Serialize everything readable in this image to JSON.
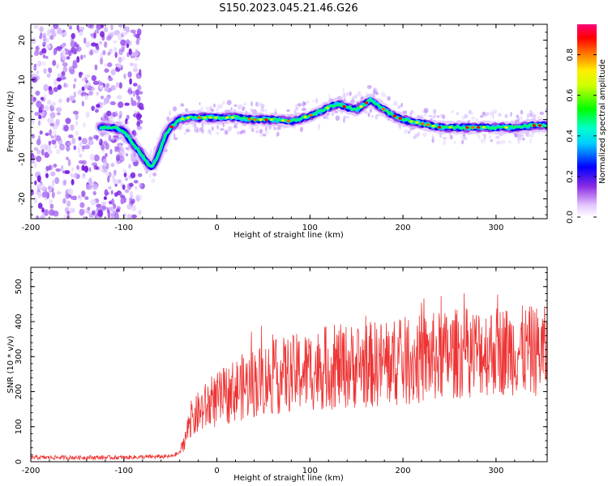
{
  "title": "S150.2023.045.21.46.G26",
  "colors": {
    "snr_line": "#ee3333",
    "spectrogram_colormap": [
      "#ffffff",
      "#8a2be2",
      "#0000ff",
      "#00ffff",
      "#00ff00",
      "#ffff00",
      "#ff0000",
      "#ff0066"
    ]
  },
  "chart_data": [
    {
      "type": "heatmap",
      "title": "",
      "xlabel": "Height of straight line (km)",
      "ylabel": "Frequency (Hz)",
      "xlim": [
        -200,
        355
      ],
      "ylim": [
        -25,
        24
      ],
      "x_ticks": [
        -200,
        -100,
        0,
        100,
        200,
        300
      ],
      "y_ticks": [
        -20,
        -10,
        0,
        10,
        20
      ],
      "colorbar": {
        "label": "Normalized spectral amplitude",
        "range": [
          0,
          0.95
        ],
        "ticks": [
          0.0,
          0.2,
          0.4,
          0.6,
          0.8
        ]
      },
      "ridge": {
        "x": [
          -125,
          -110,
          -100,
          -90,
          -80,
          -75,
          -70,
          -65,
          -60,
          -55,
          -50,
          -40,
          -30,
          -20,
          0,
          20,
          40,
          60,
          80,
          100,
          110,
          120,
          130,
          140,
          150,
          160,
          165,
          170,
          180,
          190,
          200,
          220,
          240,
          260,
          280,
          300,
          320,
          340,
          355
        ],
        "y": [
          -2,
          -2,
          -3,
          -6,
          -9,
          -11,
          -12,
          -10,
          -7,
          -4,
          -2,
          0,
          0.5,
          0.5,
          0.5,
          0.5,
          0,
          0,
          -0.5,
          1,
          2,
          3,
          4,
          3,
          2.5,
          4,
          5,
          4,
          2.5,
          1,
          0,
          -1,
          -2,
          -2,
          -2,
          -2,
          -2,
          -1.5,
          -1.5
        ]
      },
      "noise_region_x": [
        -200,
        -80
      ]
    },
    {
      "type": "line",
      "title": "",
      "xlabel": "Height of straight line (km)",
      "ylabel": "SNR (10 * v/v)",
      "xlim": [
        -200,
        355
      ],
      "ylim": [
        0,
        555
      ],
      "x_ticks": [
        -200,
        -100,
        0,
        100,
        200,
        300
      ],
      "y_ticks": [
        0,
        100,
        200,
        300,
        400,
        500
      ],
      "series": [
        {
          "x": [
            -200,
            -150,
            -100,
            -50,
            -40,
            -35,
            -30,
            -20,
            -10,
            0,
            10,
            20,
            30,
            40,
            50,
            60,
            70,
            80,
            90,
            100,
            110,
            120,
            130,
            140,
            150,
            160,
            170,
            180,
            190,
            200,
            210,
            220,
            230,
            240,
            250,
            260,
            270,
            280,
            290,
            300,
            310,
            320,
            330,
            340,
            355
          ],
          "y": [
            12,
            12,
            12,
            15,
            25,
            60,
            100,
            140,
            160,
            175,
            190,
            205,
            215,
            225,
            235,
            240,
            245,
            250,
            255,
            260,
            265,
            268,
            270,
            272,
            274,
            276,
            278,
            280,
            282,
            285,
            288,
            292,
            296,
            300,
            305,
            310,
            312,
            314,
            316,
            318,
            318,
            318,
            316,
            316,
            315
          ]
        }
      ]
    }
  ]
}
